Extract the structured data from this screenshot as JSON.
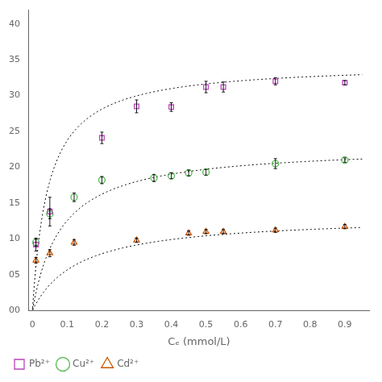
{
  "chart_data": {
    "type": "scatter",
    "x_label": "Cₑ (mmol/L)",
    "xlim": [
      -0.01,
      0.97
    ],
    "ylim": [
      0,
      42
    ],
    "xticks": [
      0,
      0.1,
      0.2,
      0.3,
      0.4,
      0.5,
      0.6,
      0.7,
      0.8,
      0.9
    ],
    "yticks": [
      {
        "value": 0,
        "label": "00"
      },
      {
        "value": 5,
        "label": "05"
      },
      10,
      15,
      20,
      25,
      30,
      35,
      40
    ],
    "grid": false,
    "legend": "bottom",
    "series": [
      {
        "name": "Pb²⁺",
        "color": "#bb44bb",
        "marker": "square",
        "x": [
          0.01,
          0.05,
          0.2,
          0.3,
          0.4,
          0.5,
          0.55,
          0.7,
          0.9
        ],
        "values": [
          9.2,
          13.8,
          24.1,
          28.5,
          28.4,
          31.2,
          31.2,
          32.0,
          31.8
        ],
        "yerr": [
          0.9,
          2.0,
          0.8,
          0.9,
          0.6,
          0.8,
          0.7,
          0.5,
          0.3
        ],
        "fit": {
          "qmax": 34.5,
          "K": 22.0,
          "x_range": [
            0.0005,
            0.95
          ],
          "color": "#000000",
          "line_style": "dotted"
        }
      },
      {
        "name": "Cu²⁺",
        "color": "#55bb55",
        "marker": "circle",
        "x": [
          0.01,
          0.05,
          0.12,
          0.2,
          0.35,
          0.4,
          0.45,
          0.5,
          0.7,
          0.9
        ],
        "values": [
          9.5,
          13.5,
          15.8,
          18.2,
          18.5,
          18.8,
          19.2,
          19.3,
          20.5,
          21.0
        ],
        "yerr": [
          0.5,
          0.7,
          0.6,
          0.5,
          0.5,
          0.4,
          0.4,
          0.4,
          0.7,
          0.3
        ],
        "fit": {
          "qmax": 23.0,
          "K": 12.0,
          "x_range": [
            0.0005,
            0.95
          ],
          "color": "#000000",
          "line_style": "dotted"
        }
      },
      {
        "name": "Cd²⁺",
        "color": "#cc5500",
        "marker": "triangle",
        "x": [
          0.01,
          0.05,
          0.12,
          0.3,
          0.45,
          0.5,
          0.55,
          0.7,
          0.9
        ],
        "values": [
          7.0,
          8.0,
          9.5,
          9.8,
          10.8,
          11.0,
          11.0,
          11.2,
          11.7
        ],
        "yerr": [
          0.4,
          0.5,
          0.4,
          0.3,
          0.3,
          0.3,
          0.3,
          0.3,
          0.3
        ],
        "fit": {
          "qmax": 13.2,
          "K": 7.5,
          "x_range": [
            0.0005,
            0.95
          ],
          "color": "#000000",
          "line_style": "dotted"
        }
      }
    ]
  }
}
